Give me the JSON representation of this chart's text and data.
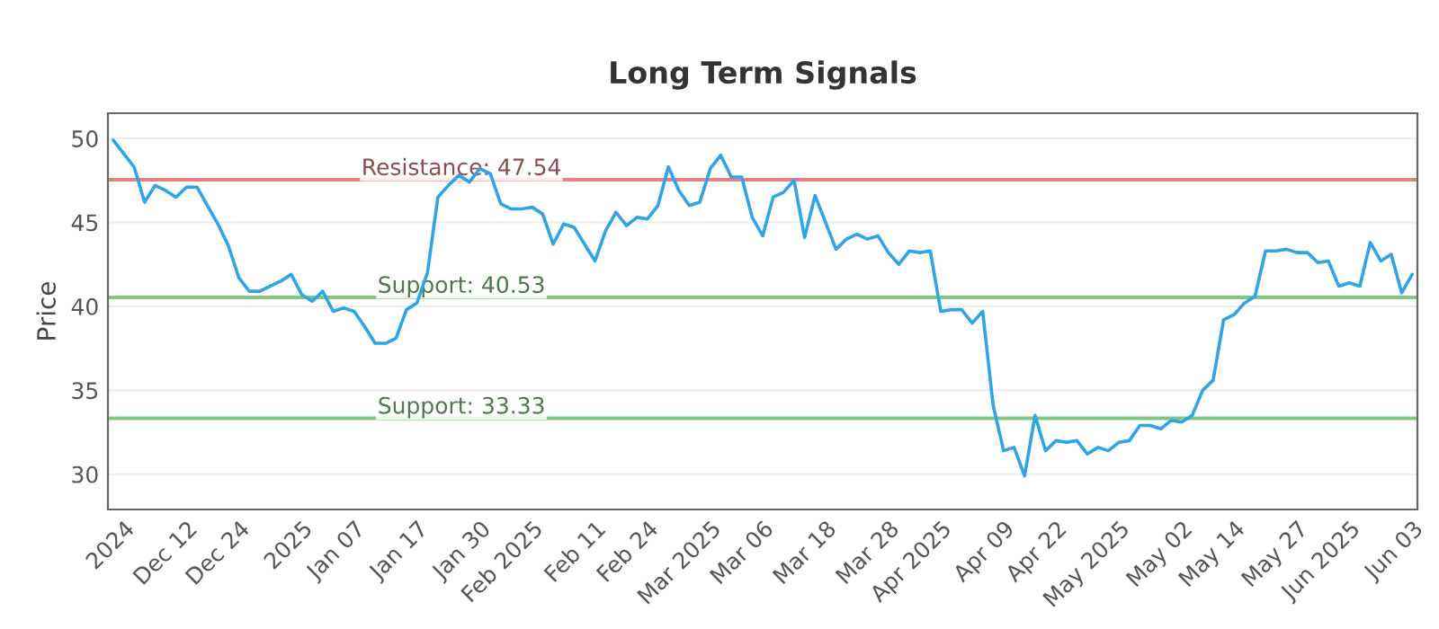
{
  "chart_data": {
    "type": "line",
    "title": "Long Term Signals",
    "ylabel": "Price",
    "categories": [
      null,
      "2024",
      null,
      null,
      null,
      null,
      null,
      "Dec 12",
      null,
      null,
      null,
      null,
      "Dec 24",
      null,
      null,
      null,
      null,
      null,
      "2025",
      null,
      null,
      null,
      null,
      "Jan 07",
      null,
      null,
      null,
      null,
      null,
      "Jan 17",
      null,
      null,
      null,
      null,
      null,
      "Jan 30",
      null,
      null,
      null,
      null,
      "Feb 2025",
      null,
      null,
      null,
      null,
      null,
      "Feb 11",
      null,
      null,
      null,
      null,
      "Feb 24",
      null,
      null,
      null,
      null,
      null,
      "Mar 2025",
      null,
      null,
      null,
      null,
      "Mar 06",
      null,
      null,
      null,
      null,
      null,
      "Mar 18",
      null,
      null,
      null,
      null,
      null,
      "Mar 28",
      null,
      null,
      null,
      null,
      "Apr 2025",
      null,
      null,
      null,
      null,
      null,
      "Apr 09",
      null,
      null,
      null,
      null,
      "Apr 22",
      null,
      null,
      null,
      null,
      null,
      "May 2025",
      null,
      null,
      null,
      null,
      null,
      "May 02",
      null,
      null,
      null,
      null,
      "May 14",
      null,
      null,
      null,
      null,
      null,
      "May 27",
      null,
      null,
      null,
      null,
      "Jun 2025",
      null,
      null,
      null,
      null,
      null,
      "Jun 03"
    ],
    "series": [
      {
        "color": "#2fa4e7",
        "values": [
          49.9,
          49.1,
          48.3,
          46.2,
          47.2,
          46.9,
          46.5,
          47.1,
          47.1,
          46.0,
          44.9,
          43.6,
          41.7,
          40.9,
          40.9,
          41.2,
          41.5,
          41.9,
          40.7,
          40.3,
          40.9,
          39.7,
          39.9,
          39.7,
          38.8,
          37.8,
          37.8,
          38.1,
          39.8,
          40.2,
          42.0,
          46.5,
          47.2,
          47.8,
          47.4,
          48.2,
          47.9,
          46.1,
          45.8,
          45.8,
          45.9,
          45.5,
          43.7,
          44.9,
          44.7,
          43.7,
          42.7,
          44.5,
          45.6,
          44.8,
          45.3,
          45.2,
          46.0,
          48.3,
          46.9,
          46.0,
          46.2,
          48.2,
          49.0,
          47.7,
          47.7,
          45.3,
          44.2,
          46.5,
          46.8,
          47.5,
          44.1,
          46.6,
          45.0,
          43.4,
          44.0,
          44.3,
          44.0,
          44.2,
          43.2,
          42.5,
          43.3,
          43.2,
          43.3,
          39.7,
          39.8,
          39.8,
          39.0,
          39.7,
          34.1,
          31.4,
          31.6,
          29.9,
          33.5,
          31.4,
          32.0,
          31.9,
          32.0,
          31.2,
          31.6,
          31.4,
          31.9,
          32.0,
          32.9,
          32.9,
          32.7,
          33.2,
          33.1,
          33.5,
          35.0,
          35.6,
          39.2,
          39.5,
          40.2,
          40.6,
          43.3,
          43.3,
          43.4,
          43.2,
          43.2,
          42.6,
          42.7,
          41.2,
          41.4,
          41.2,
          43.8,
          42.7,
          43.1,
          40.8,
          41.9
        ]
      }
    ],
    "ylim": [
      27.9,
      51.5
    ],
    "yticks": [
      30,
      35,
      40,
      45,
      50
    ],
    "grid": "y",
    "marker": "none",
    "line_style": "solid",
    "ref_lines": [
      {
        "axis": "y",
        "value": 47.54,
        "label": "Resistance: 47.54",
        "color": "#e88080"
      },
      {
        "axis": "y",
        "value": 40.53,
        "label": "Support: 40.53",
        "color": "#80c880"
      },
      {
        "axis": "y",
        "value": 33.33,
        "label": "Support: 33.33",
        "color": "#80c880"
      }
    ]
  }
}
